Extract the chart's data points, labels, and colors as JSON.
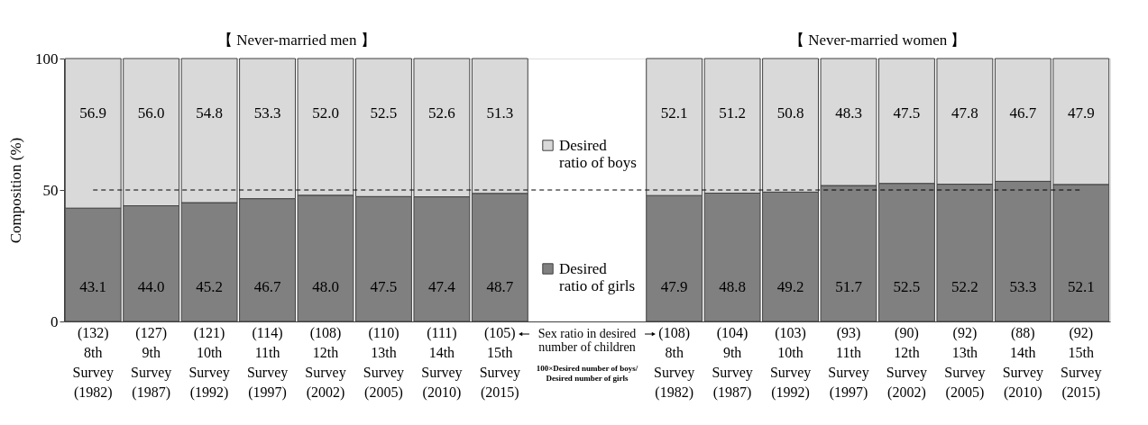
{
  "chart_data": {
    "type": "bar",
    "stacked": true,
    "ylabel": "Composition (%)",
    "categories": [
      "(132)\n8th\nSurvey\n(1982)",
      "(127)\n9th\nSurvey\n(1987)",
      "(121)\n10th\nSurvey\n(1992)",
      "(114)\n11th\nSurvey\n(1997)",
      "(108)\n12th\nSurvey\n(2002)",
      "(110)\n13th\nSurvey\n(2005)",
      "(111)\n14th\nSurvey\n(2010)",
      "(105)\n15th\nSurvey\n(2015)",
      null,
      "(108)\n8th\nSurvey\n(1982)",
      "(104)\n9th\nSurvey\n(1987)",
      "(103)\n10th\nSurvey\n(1992)",
      "(93)\n11th\nSurvey\n(1997)",
      "(90)\n12th\nSurvey\n(2002)",
      "(92)\n13th\nSurvey\n(2005)",
      "(88)\n14th\nSurvey\n(2010)",
      "(92)\n15th\nSurvey\n(2015)"
    ],
    "series": [
      {
        "name": "Desired ratio of girls",
        "color": "#808080",
        "values": [
          43.1,
          44.0,
          45.2,
          46.7,
          48.0,
          47.5,
          47.4,
          48.7,
          null,
          47.9,
          48.8,
          49.2,
          51.7,
          52.5,
          52.2,
          53.3,
          52.1
        ],
        "value_labels": [
          "43.1",
          "44.0",
          "45.2",
          "46.7",
          "48.0",
          "47.5",
          "47.4",
          "48.7",
          null,
          "47.9",
          "48.8",
          "49.2",
          "51.7",
          "52.5",
          "52.2",
          "53.3",
          "52.1"
        ]
      },
      {
        "name": "Desired ratio of boys",
        "color": "#d9d9d9",
        "values": [
          56.9,
          56.0,
          54.8,
          53.3,
          52.0,
          52.5,
          52.6,
          51.3,
          null,
          52.1,
          51.2,
          50.8,
          48.3,
          47.5,
          47.8,
          46.7,
          47.9
        ],
        "value_labels": [
          "56.9",
          "56.0",
          "54.8",
          "53.3",
          "52.0",
          "52.5",
          "52.6",
          "51.3",
          null,
          "52.1",
          "51.2",
          "50.8",
          "48.3",
          "47.5",
          "47.8",
          "46.7",
          "47.9"
        ]
      }
    ],
    "ylim": [
      0,
      100
    ],
    "yticks": [
      0,
      50,
      100
    ],
    "grid": false,
    "legend": "center",
    "ref_lines": [
      {
        "axis": "y",
        "value": 50,
        "color": "#000000",
        "line_style": "dashed"
      }
    ],
    "annotations": [
      "【 Never-married men 】",
      "【 Never-married women 】",
      "Sex ratio in desired\nnumber of children",
      "100×Desired number of boys/Desired number of girls"
    ]
  }
}
